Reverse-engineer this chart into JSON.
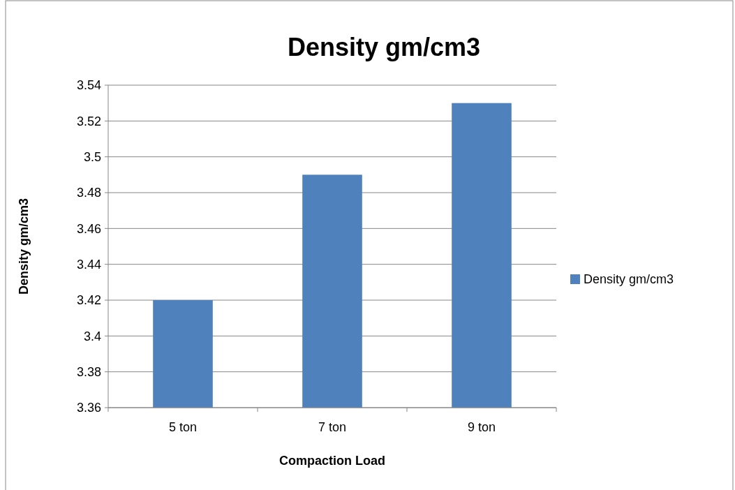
{
  "chart_data": {
    "type": "bar",
    "title": "Density gm/cm3",
    "xlabel": "Compaction Load",
    "ylabel": "Density gm/cm3",
    "categories": [
      "5 ton",
      "7 ton",
      "9 ton"
    ],
    "series": [
      {
        "name": "Density gm/cm3",
        "color": "#4f81bd",
        "values": [
          3.42,
          3.49,
          3.53
        ]
      }
    ],
    "ylim": [
      3.36,
      3.54
    ],
    "yticks": [
      3.36,
      3.38,
      3.4,
      3.42,
      3.44,
      3.46,
      3.48,
      3.5,
      3.52,
      3.54
    ],
    "grid": "y",
    "legend": "right"
  }
}
